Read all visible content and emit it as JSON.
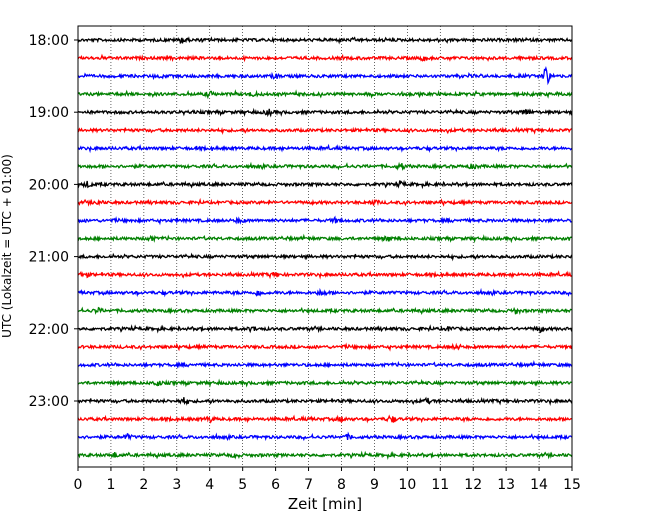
{
  "chart_data": {
    "type": "line",
    "title": "",
    "xlabel": "Zeit  [min]",
    "ylabel": "UTC (Lokalzeit = UTC + 01:00)",
    "xlim": [
      0,
      15
    ],
    "x_ticks": [
      "0",
      "1",
      "2",
      "3",
      "4",
      "5",
      "6",
      "7",
      "8",
      "9",
      "10",
      "11",
      "12",
      "13",
      "14",
      "15"
    ],
    "y_ticks": [
      "18:00",
      "19:00",
      "20:00",
      "21:00",
      "22:00",
      "23:00"
    ],
    "grid": "vertical-dotted",
    "trace_interval_minutes": 15,
    "color_cycle": [
      "#000000",
      "#ff0000",
      "#0000ff",
      "#008000"
    ],
    "rows": [
      {
        "time": "18:00",
        "color": "#000000",
        "events": [
          [
            3.2,
            3.0
          ]
        ]
      },
      {
        "time": "18:15",
        "color": "#ff0000",
        "events": [
          [
            10.5,
            2.0
          ]
        ]
      },
      {
        "time": "18:30",
        "color": "#0000ff",
        "events": [
          [
            6.0,
            2.0
          ],
          [
            14.2,
            9.0
          ]
        ]
      },
      {
        "time": "18:45",
        "color": "#008000",
        "events": [
          [
            4.0,
            2.5
          ],
          [
            5.3,
            2.0
          ]
        ]
      },
      {
        "time": "19:00",
        "color": "#000000",
        "events": [
          [
            5.8,
            2.5
          ],
          [
            13.6,
            3.0
          ]
        ]
      },
      {
        "time": "19:15",
        "color": "#ff0000",
        "events": []
      },
      {
        "time": "19:30",
        "color": "#0000ff",
        "events": []
      },
      {
        "time": "19:45",
        "color": "#008000",
        "events": [
          [
            9.8,
            2.5
          ],
          [
            12.0,
            2.0
          ]
        ]
      },
      {
        "time": "20:00",
        "color": "#000000",
        "events": [
          [
            0.3,
            2.5
          ],
          [
            9.8,
            2.0
          ]
        ]
      },
      {
        "time": "20:15",
        "color": "#ff0000",
        "events": [
          [
            0.6,
            2.0
          ],
          [
            9.0,
            2.0
          ]
        ]
      },
      {
        "time": "20:30",
        "color": "#0000ff",
        "events": [
          [
            4.9,
            2.0
          ],
          [
            7.8,
            2.0
          ]
        ]
      },
      {
        "time": "20:45",
        "color": "#008000",
        "events": [
          [
            2.2,
            2.0
          ],
          [
            9.4,
            2.0
          ]
        ]
      },
      {
        "time": "21:00",
        "color": "#000000",
        "events": []
      },
      {
        "time": "21:15",
        "color": "#ff0000",
        "events": [
          [
            0.2,
            2.5
          ],
          [
            6.0,
            2.0
          ]
        ]
      },
      {
        "time": "21:30",
        "color": "#0000ff",
        "events": [
          [
            5.5,
            3.0
          ],
          [
            7.4,
            2.5
          ]
        ]
      },
      {
        "time": "21:45",
        "color": "#008000",
        "events": [
          [
            0.6,
            2.0
          ],
          [
            13.3,
            2.5
          ]
        ]
      },
      {
        "time": "22:00",
        "color": "#000000",
        "events": [
          [
            5.3,
            2.0
          ],
          [
            11.3,
            2.0
          ],
          [
            14.0,
            3.0
          ]
        ]
      },
      {
        "time": "22:15",
        "color": "#ff0000",
        "events": [
          [
            11.5,
            2.0
          ]
        ]
      },
      {
        "time": "22:30",
        "color": "#0000ff",
        "events": []
      },
      {
        "time": "22:45",
        "color": "#008000",
        "events": [
          [
            2.4,
            2.5
          ]
        ]
      },
      {
        "time": "23:00",
        "color": "#000000",
        "events": [
          [
            3.2,
            3.0
          ],
          [
            10.6,
            2.0
          ]
        ]
      },
      {
        "time": "23:15",
        "color": "#ff0000",
        "events": [
          [
            4.0,
            2.5
          ],
          [
            8.0,
            2.0
          ],
          [
            9.5,
            3.0
          ]
        ]
      },
      {
        "time": "23:30",
        "color": "#0000ff",
        "events": [
          [
            1.5,
            2.0
          ],
          [
            8.2,
            2.0
          ]
        ]
      },
      {
        "time": "23:45",
        "color": "#008000",
        "events": [
          [
            1.1,
            2.0
          ],
          [
            4.8,
            2.0
          ]
        ]
      }
    ]
  }
}
